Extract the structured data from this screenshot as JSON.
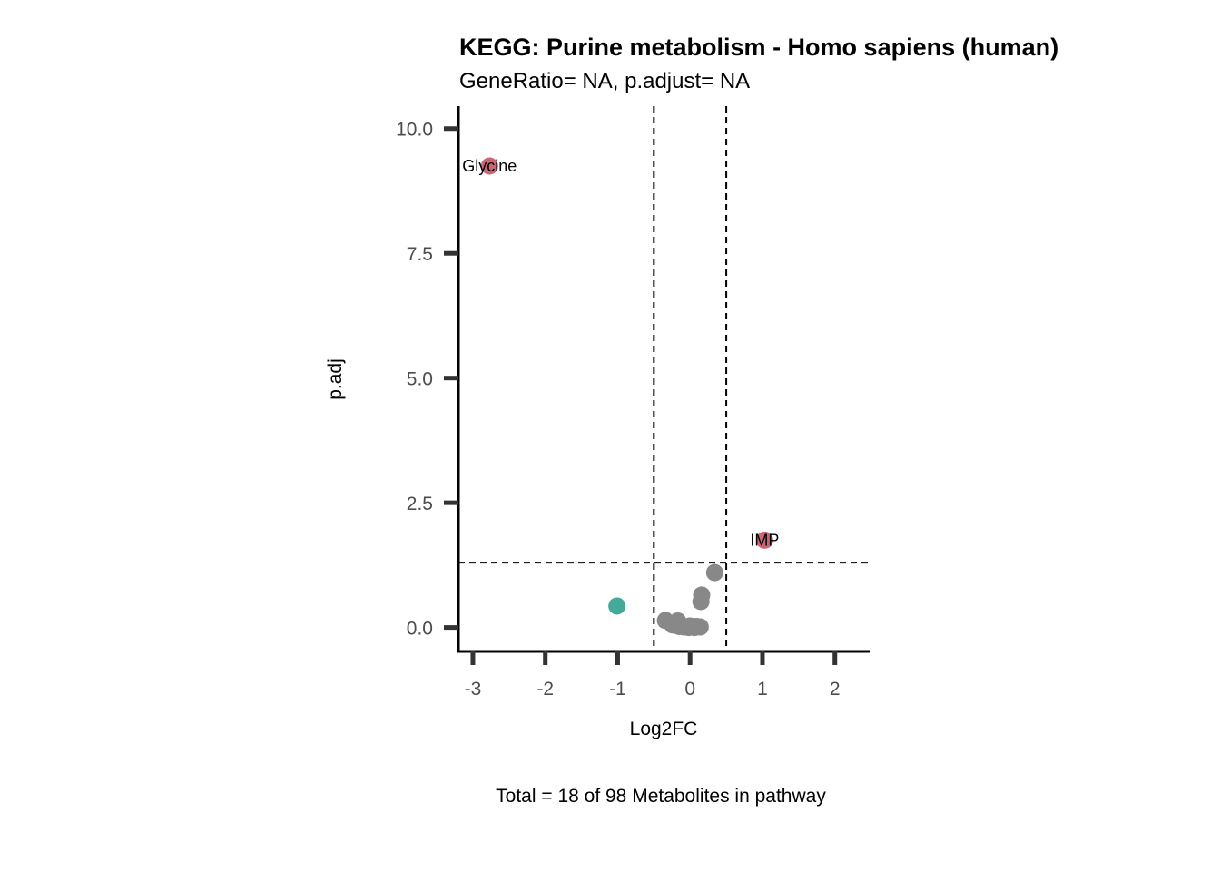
{
  "chart_data": {
    "type": "scatter",
    "title": "KEGG: Purine metabolism - Homo sapiens (human)",
    "subtitle": "GeneRatio= NA, p.adjust= NA",
    "xlabel": "Log2FC",
    "ylabel": "p.adj",
    "caption": "Total = 18 of 98 Metabolites in pathway",
    "xlim": [
      -3.2,
      2.48
    ],
    "ylim": [
      -0.48,
      10.45
    ],
    "x_ticks": [
      -3,
      -2,
      -1,
      0,
      1,
      2
    ],
    "x_tick_labels": [
      "-3",
      "-2",
      "-1",
      "0",
      "1",
      "2"
    ],
    "y_ticks": [
      0,
      2.5,
      5,
      7.5,
      10
    ],
    "y_tick_labels": [
      "0.0",
      "2.5",
      "5.0",
      "7.5",
      "10.0"
    ],
    "grid": false,
    "legend": "none",
    "colors": {
      "up": "#cc6677",
      "down": "#44aa99",
      "ns": "#888888",
      "axis": "#000000",
      "ticks": "#333333"
    },
    "thresholds": {
      "vlines": [
        -0.5,
        0.5
      ],
      "hline": 1.3
    },
    "points": [
      {
        "x": -2.77,
        "y": 9.25,
        "group": "up",
        "label": "Glycine"
      },
      {
        "x": 1.03,
        "y": 1.75,
        "group": "up",
        "label": "IMP"
      },
      {
        "x": -1.01,
        "y": 0.43,
        "group": "down",
        "label": ""
      },
      {
        "x": 0.34,
        "y": 1.1,
        "group": "ns",
        "label": ""
      },
      {
        "x": 0.16,
        "y": 0.65,
        "group": "ns",
        "label": ""
      },
      {
        "x": 0.15,
        "y": 0.52,
        "group": "ns",
        "label": ""
      },
      {
        "x": -0.34,
        "y": 0.14,
        "group": "ns",
        "label": ""
      },
      {
        "x": -0.17,
        "y": 0.13,
        "group": "ns",
        "label": ""
      },
      {
        "x": -0.24,
        "y": 0.05,
        "group": "ns",
        "label": ""
      },
      {
        "x": -0.15,
        "y": 0.02,
        "group": "ns",
        "label": ""
      },
      {
        "x": -0.08,
        "y": 0.01,
        "group": "ns",
        "label": ""
      },
      {
        "x": -0.02,
        "y": 0.0,
        "group": "ns",
        "label": ""
      },
      {
        "x": 0.02,
        "y": 0.01,
        "group": "ns",
        "label": ""
      },
      {
        "x": 0.06,
        "y": 0.0,
        "group": "ns",
        "label": ""
      },
      {
        "x": 0.09,
        "y": 0.02,
        "group": "ns",
        "label": ""
      },
      {
        "x": 0.14,
        "y": 0.01,
        "group": "ns",
        "label": ""
      },
      {
        "x": -0.11,
        "y": 0.03,
        "group": "ns",
        "label": ""
      },
      {
        "x": 0.0,
        "y": 0.03,
        "group": "ns",
        "label": ""
      }
    ]
  }
}
